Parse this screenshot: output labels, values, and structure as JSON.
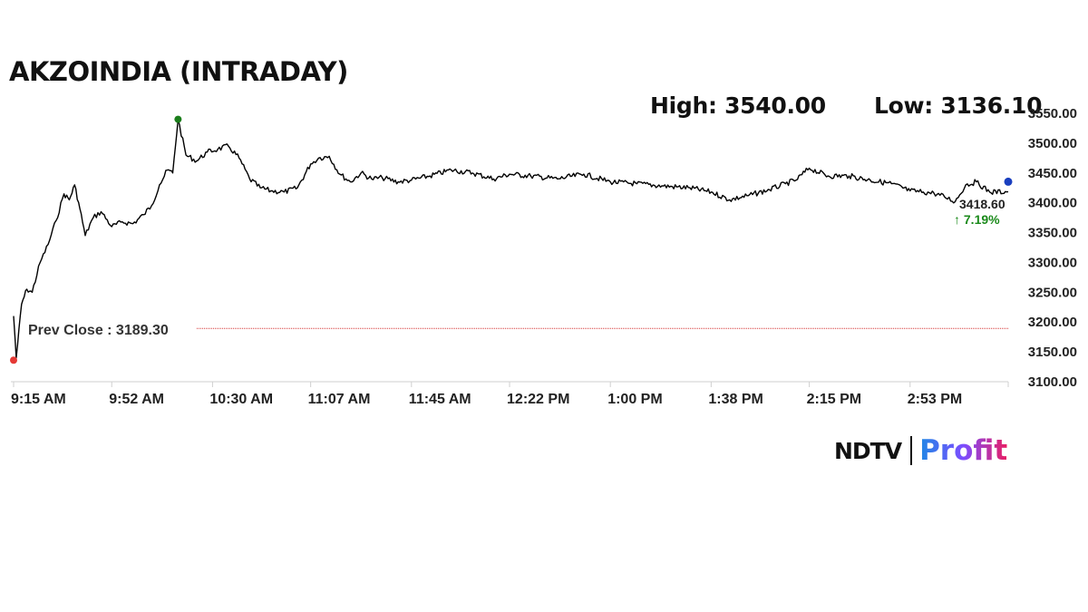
{
  "header": {
    "title": "AKZOINDIA (INTRADAY)",
    "high_text": "High: 3540.00",
    "low_text": "Low: 3136.10"
  },
  "logo": {
    "brand": "NDTV",
    "product": "Profit"
  },
  "chart_data": {
    "type": "line",
    "title": "AKZOINDIA (INTRADAY)",
    "xlabel": "",
    "ylabel": "",
    "ylim": [
      3100,
      3560
    ],
    "y_ticks": [
      "3100.00",
      "3150.00",
      "3200.00",
      "3250.00",
      "3300.00",
      "3350.00",
      "3400.00",
      "3450.00",
      "3500.00",
      "3550.00"
    ],
    "x_ticks": [
      "9:15 AM",
      "9:52 AM",
      "10:30 AM",
      "11:07 AM",
      "11:45 AM",
      "12:22 PM",
      "1:00 PM",
      "1:38 PM",
      "2:15 PM",
      "2:53 PM"
    ],
    "grid": false,
    "prev_close": {
      "label": "Prev Close : 3189.30",
      "value": 3189.3,
      "color": "#d32f2f"
    },
    "high": {
      "value": 3540.0,
      "time": "10:17 AM",
      "color": "#1b7e1b"
    },
    "low": {
      "value": 3136.1,
      "time": "9:15 AM",
      "color": "#e53935"
    },
    "last": {
      "value": 3418.6,
      "label": "3418.60",
      "change_label": "↑ 7.19%",
      "change_color": "#1b8a1b",
      "marker_color": "#1a3fbf"
    },
    "series": [
      {
        "color": "#000000",
        "x": [
          "9:15 AM",
          "9:16 AM",
          "9:18 AM",
          "9:20 AM",
          "9:22 AM",
          "9:25 AM",
          "9:28 AM",
          "9:31 AM",
          "9:34 AM",
          "9:36 AM",
          "9:38 AM",
          "9:40 AM",
          "9:42 AM",
          "9:45 AM",
          "9:48 AM",
          "9:52 AM",
          "9:56 AM",
          "10:00 AM",
          "10:04 AM",
          "10:07 AM",
          "10:10 AM",
          "10:13 AM",
          "10:15 AM",
          "10:17 AM",
          "10:20 AM",
          "10:24 AM",
          "10:28 AM",
          "10:32 AM",
          "10:36 AM",
          "10:40 AM",
          "10:44 AM",
          "10:48 AM",
          "10:52 AM",
          "10:57 AM",
          "11:02 AM",
          "11:07 AM",
          "11:10 AM",
          "11:14 AM",
          "11:18 AM",
          "11:22 AM",
          "11:26 AM",
          "11:30 AM",
          "11:34 AM",
          "11:40 AM",
          "11:45 AM",
          "11:52 AM",
          "12:00 PM",
          "12:08 PM",
          "12:16 PM",
          "12:22 PM",
          "12:30 PM",
          "12:40 PM",
          "12:50 PM",
          "1:00 PM",
          "1:10 PM",
          "1:20 PM",
          "1:30 PM",
          "1:38 PM",
          "1:45 PM",
          "1:52 PM",
          "2:00 PM",
          "2:06 PM",
          "2:10 PM",
          "2:15 PM",
          "2:22 PM",
          "2:30 PM",
          "2:38 PM",
          "2:46 PM",
          "2:53 PM",
          "2:58 PM",
          "3:02 PM",
          "3:06 PM",
          "3:10 PM",
          "3:14 PM",
          "3:18 PM",
          "3:23 PM",
          "3:30 PM"
        ],
        "y": [
          3210,
          3140,
          3230,
          3255,
          3250,
          3300,
          3330,
          3370,
          3415,
          3405,
          3430,
          3390,
          3345,
          3375,
          3385,
          3360,
          3368,
          3365,
          3380,
          3395,
          3430,
          3455,
          3450,
          3540,
          3480,
          3470,
          3485,
          3490,
          3495,
          3475,
          3440,
          3425,
          3420,
          3418,
          3425,
          3465,
          3475,
          3478,
          3448,
          3435,
          3450,
          3440,
          3442,
          3435,
          3438,
          3445,
          3455,
          3450,
          3440,
          3448,
          3445,
          3440,
          3448,
          3435,
          3432,
          3428,
          3425,
          3418,
          3405,
          3412,
          3422,
          3432,
          3438,
          3458,
          3445,
          3445,
          3438,
          3432,
          3420,
          3418,
          3416,
          3410,
          3402,
          3430,
          3435,
          3418,
          3418.6
        ]
      }
    ]
  }
}
